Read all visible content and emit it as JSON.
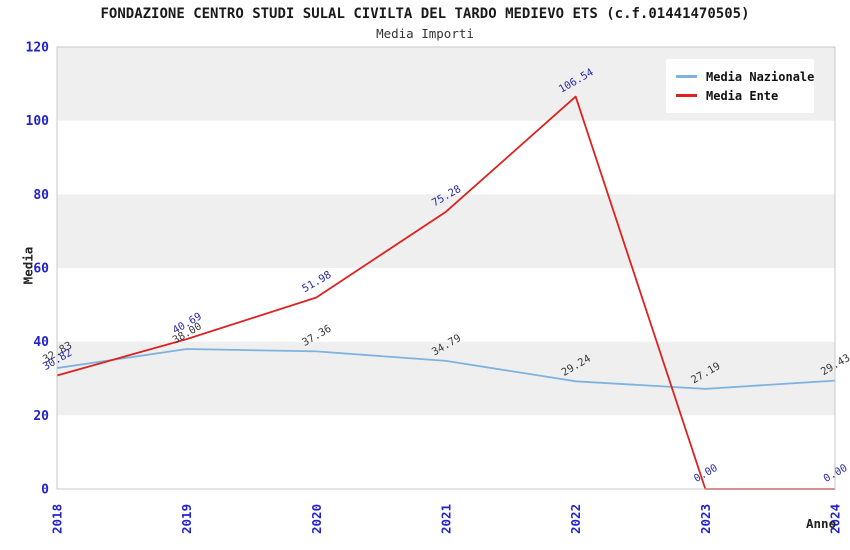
{
  "chart_data": {
    "type": "line",
    "title": "FONDAZIONE CENTRO STUDI SULAL CIVILTA DEL TARDO MEDIEVO ETS (c.f.01441470505)",
    "subtitle": "Media Importi",
    "xlabel": "Anno",
    "ylabel": "Media",
    "x": [
      2018,
      2019,
      2020,
      2021,
      2022,
      2023,
      2024
    ],
    "ylim": [
      0,
      120
    ],
    "yticks": [
      0,
      20,
      40,
      60,
      80,
      100,
      120
    ],
    "grid": "horizontal-bands",
    "legend_position": "top-right",
    "series": [
      {
        "name": "Media Nazionale",
        "color": "#7eb3e0",
        "label_color": "#3a3a3a",
        "values": [
          32.83,
          38.0,
          37.36,
          34.79,
          29.24,
          27.19,
          29.43
        ]
      },
      {
        "name": "Media Ente",
        "color": "#dd2222",
        "label_color": "#2a2aa5",
        "values": [
          30.82,
          40.69,
          51.98,
          75.28,
          106.54,
          0.0,
          0.0
        ]
      }
    ],
    "colors": {
      "tick_label": "#2323cb",
      "band_gray": "#efefef",
      "band_white": "#ffffff",
      "plot_border": "#c9c9c9"
    }
  }
}
